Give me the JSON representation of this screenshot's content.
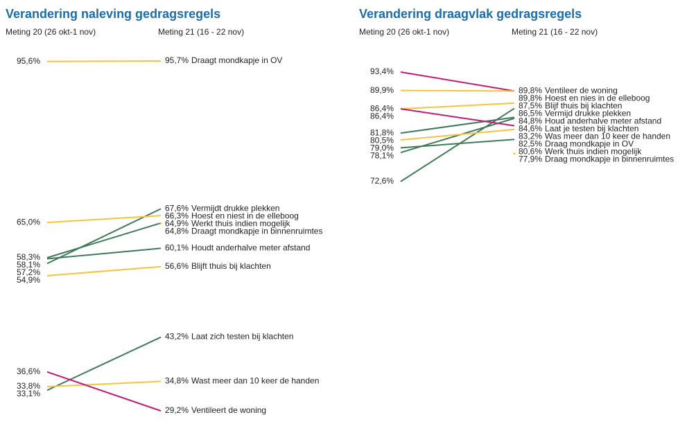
{
  "chart_data": [
    {
      "type": "slope",
      "title": "Verandering naleving gedragsregels",
      "categories": [
        "Meting 20 (26 okt-1 nov)",
        "Meting 21 (16 - 22 nov)"
      ],
      "series": [
        {
          "name": "Draagt mondkapje in OV",
          "color": "#f9c23c",
          "values": [
            95.6,
            95.7
          ],
          "value_labels": [
            "95,6%",
            "95,7%"
          ]
        },
        {
          "name": "Vermijdt drukke plekken",
          "color": "#3f7a58",
          "values": [
            57.2,
            67.6
          ],
          "value_labels": [
            "57,2%",
            "67,6%"
          ]
        },
        {
          "name": "Hoest en niest in de elleboog",
          "color": "#f9c23c",
          "values": [
            65.0,
            66.3
          ],
          "value_labels": [
            "65,0%",
            "66,3%"
          ]
        },
        {
          "name": "Werkt thuis indien mogelijk",
          "color": "#3f7a58",
          "values": [
            58.3,
            64.9
          ],
          "value_labels": [
            "58,3%",
            "64,9%"
          ]
        },
        {
          "name": "Draagt mondkapje in binnenruimtes",
          "color": "#f9c23c",
          "values": [
            null,
            64.8
          ],
          "value_labels": [
            null,
            "64,8%"
          ]
        },
        {
          "name": "Houdt anderhalve meter afstand",
          "color": "#3f7a58",
          "values": [
            58.1,
            60.1
          ],
          "value_labels": [
            "58,1%",
            "60,1%"
          ]
        },
        {
          "name": "Blijft thuis bij klachten",
          "color": "#f9c23c",
          "values": [
            54.9,
            56.6
          ],
          "value_labels": [
            "54,9%",
            "56,6%"
          ]
        },
        {
          "name": "Laat zich testen bij klachten",
          "color": "#3f7a58",
          "values": [
            33.1,
            43.2
          ],
          "value_labels": [
            "33,1%",
            "43,2%"
          ]
        },
        {
          "name": "Wast meer dan 10 keer de handen",
          "color": "#f9c23c",
          "values": [
            33.8,
            34.8
          ],
          "value_labels": [
            "33,8%",
            "34,8%"
          ]
        },
        {
          "name": "Ventileert de woning",
          "color": "#c2187a",
          "values": [
            36.6,
            29.2
          ],
          "value_labels": [
            "36,6%",
            "29,2%"
          ]
        }
      ]
    },
    {
      "type": "slope",
      "title": "Verandering draagvlak gedragsregels",
      "categories": [
        "Meting 20 (26 okt-1 nov)",
        "Meting 21 (16 - 22 nov)"
      ],
      "series": [
        {
          "name": "Ventileer de woning",
          "color": "#c2187a",
          "values": [
            93.4,
            89.8
          ],
          "value_labels": [
            "93,4%",
            "89,8%"
          ]
        },
        {
          "name": "Hoest en nies in de elleboog",
          "color": "#f9c23c",
          "values": [
            89.9,
            89.8
          ],
          "value_labels": [
            "89,9%",
            "89,8%"
          ]
        },
        {
          "name": "Blijf thuis bij klachten",
          "color": "#f9c23c",
          "values": [
            86.4,
            87.5
          ],
          "value_labels": [
            "86,4%",
            "87,5%"
          ]
        },
        {
          "name": "Vermijd drukke plekken",
          "color": "#3f7a58",
          "values": [
            72.6,
            86.5
          ],
          "value_labels": [
            "72,6%",
            "86,5%"
          ]
        },
        {
          "name": "Houd anderhalve meter afstand",
          "color": "#3f7a58",
          "values": [
            81.8,
            84.8
          ],
          "value_labels": [
            "81,8%",
            "84,8%"
          ]
        },
        {
          "name": "Laat je testen bij klachten",
          "color": "#3f7a58",
          "values": [
            78.1,
            84.6
          ],
          "value_labels": [
            "78,1%",
            "84,6%"
          ]
        },
        {
          "name": "Was meer dan 10 keer de handen",
          "color": "#c2187a",
          "values": [
            86.4,
            83.2
          ],
          "value_labels": [
            "86,4%",
            "83,2%"
          ]
        },
        {
          "name": "Draag mondkapje in OV",
          "color": "#f9c23c",
          "values": [
            80.5,
            82.5
          ],
          "value_labels": [
            "80,5%",
            "82,5%"
          ]
        },
        {
          "name": "Werk thuis indien mogelijk",
          "color": "#3f7a58",
          "values": [
            79.0,
            80.6
          ],
          "value_labels": [
            "79,0%",
            "80,6%"
          ]
        },
        {
          "name": "Draag mondkapje in binnenruimtes",
          "color": "#f9c23c",
          "values": [
            null,
            77.9
          ],
          "value_labels": [
            null,
            "77,9%"
          ]
        }
      ]
    }
  ]
}
